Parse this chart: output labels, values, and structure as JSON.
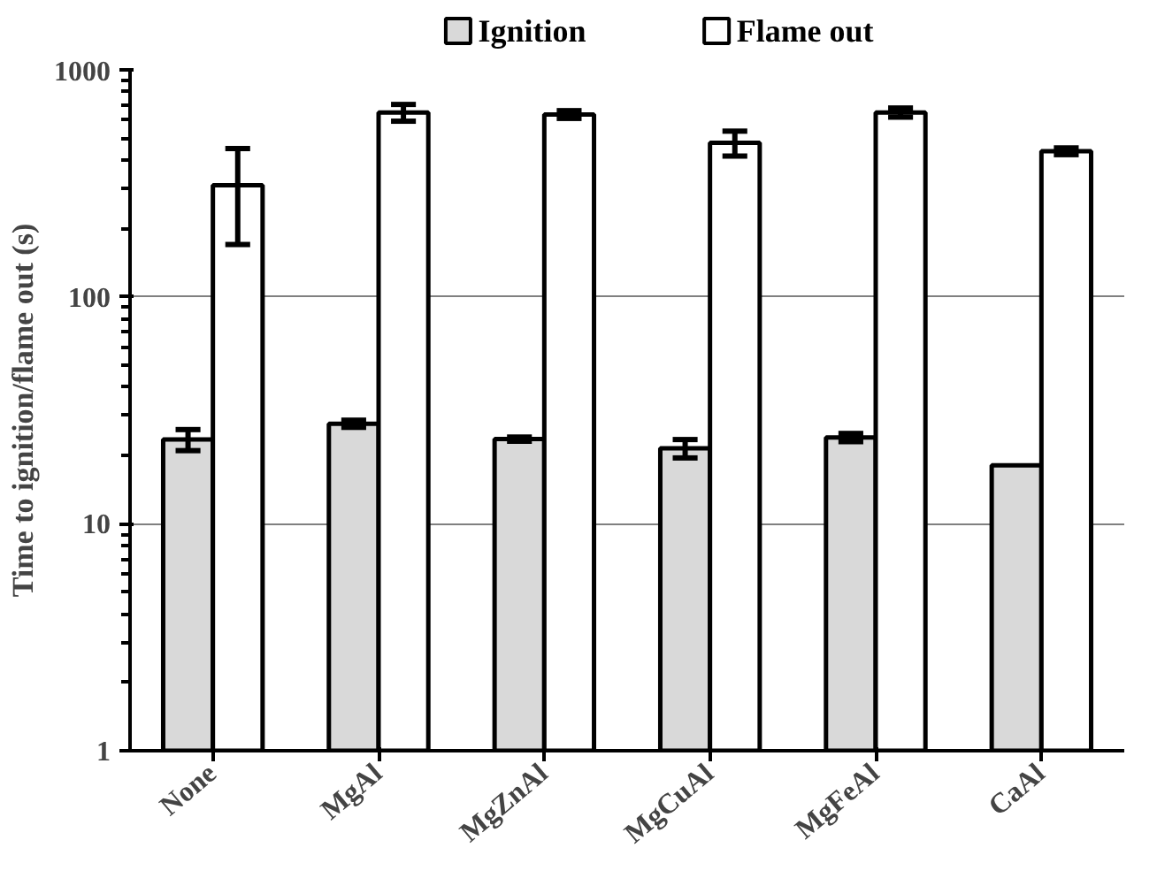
{
  "chart_data": {
    "type": "bar",
    "ylabel": "Time to ignition/flame out (s)",
    "categories": [
      "None",
      "MgAl",
      "MgZnAl",
      "MgCuAl",
      "MgFeAl",
      "CaAl"
    ],
    "series": [
      {
        "name": "Ignition",
        "color": "#d9d9d9",
        "values": [
          23.5,
          27.6,
          23.6,
          21.5,
          24.0,
          18.1
        ],
        "errors": [
          2.5,
          1,
          0.5,
          2,
          1,
          null
        ]
      },
      {
        "name": "Flame out",
        "color": "#ffffff",
        "values": [
          310,
          649,
          636,
          477,
          649,
          438
        ],
        "errors": [
          140,
          55,
          25,
          60,
          30,
          15
        ]
      }
    ],
    "log": "y",
    "ylim": [
      1,
      1000
    ],
    "yticks": [
      1,
      10,
      100,
      1000
    ],
    "grid": "y",
    "legend": "top"
  }
}
